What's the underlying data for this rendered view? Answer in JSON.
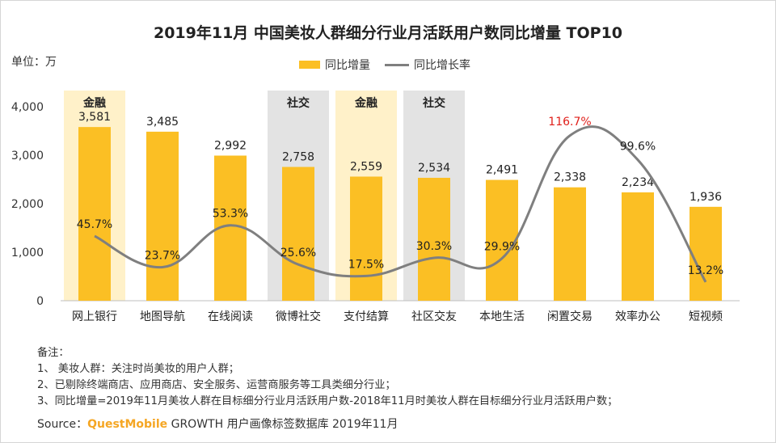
{
  "title": "2019年11月 中国美妆人群细分行业月活跃用户数同比增量 TOP10",
  "unit_label": "单位：万",
  "legend": {
    "bar": "同比增量",
    "line": "同比增长率"
  },
  "chart_data": {
    "type": "bar",
    "categories": [
      "网上银行",
      "地图导航",
      "在线阅读",
      "微博社交",
      "支付结算",
      "社区交友",
      "本地生活",
      "闲置交易",
      "效率办公",
      "短视频"
    ],
    "series": [
      {
        "name": "同比增量",
        "type": "bar",
        "values": [
          3581,
          3485,
          2992,
          2758,
          2559,
          2534,
          2491,
          2338,
          2234,
          1936
        ],
        "labels": [
          "3,581",
          "3,485",
          "2,992",
          "2,758",
          "2,559",
          "2,534",
          "2,491",
          "2,338",
          "2,234",
          "1,936"
        ]
      },
      {
        "name": "同比增长率",
        "type": "line",
        "values": [
          45.7,
          23.7,
          53.3,
          25.6,
          17.5,
          30.3,
          29.9,
          116.7,
          99.6,
          13.2
        ],
        "labels": [
          "45.7%",
          "23.7%",
          "53.3%",
          "25.6%",
          "17.5%",
          "30.3%",
          "29.9%",
          "116.7%",
          "99.6%",
          "13.2%"
        ]
      }
    ],
    "yticks": [
      "0",
      "1,000",
      "2,000",
      "3,000",
      "4,000"
    ],
    "ylim": [
      0,
      4000
    ],
    "highlight_bands": [
      {
        "index": 0,
        "label": "金融",
        "color": "#FFF1C9"
      },
      {
        "index": 3,
        "label": "社交",
        "color": "#E3E3E3"
      },
      {
        "index": 4,
        "label": "金融",
        "color": "#FFF1C9"
      },
      {
        "index": 5,
        "label": "社交",
        "color": "#E3E3E3"
      }
    ],
    "bar_color": "#FBBF24",
    "line_color": "#7f7f7f",
    "highlight_label_color": "#E0201B"
  },
  "notes": {
    "heading": "备注：",
    "items": [
      "1、 美妆人群：关注时尚美妆的用户人群；",
      "2、已剔除终端商店、应用商店、安全服务、运营商服务等工具类细分行业；",
      "3、同比增量=2019年11月美妆人群在目标细分行业月活跃用户数-2018年11月时美妆人群在目标细分行业月活跃用户数；"
    ]
  },
  "source": {
    "prefix": "Source：",
    "brand": "QuestMobile",
    "rest": " GROWTH 用户画像标签数据库  2019年11月"
  }
}
